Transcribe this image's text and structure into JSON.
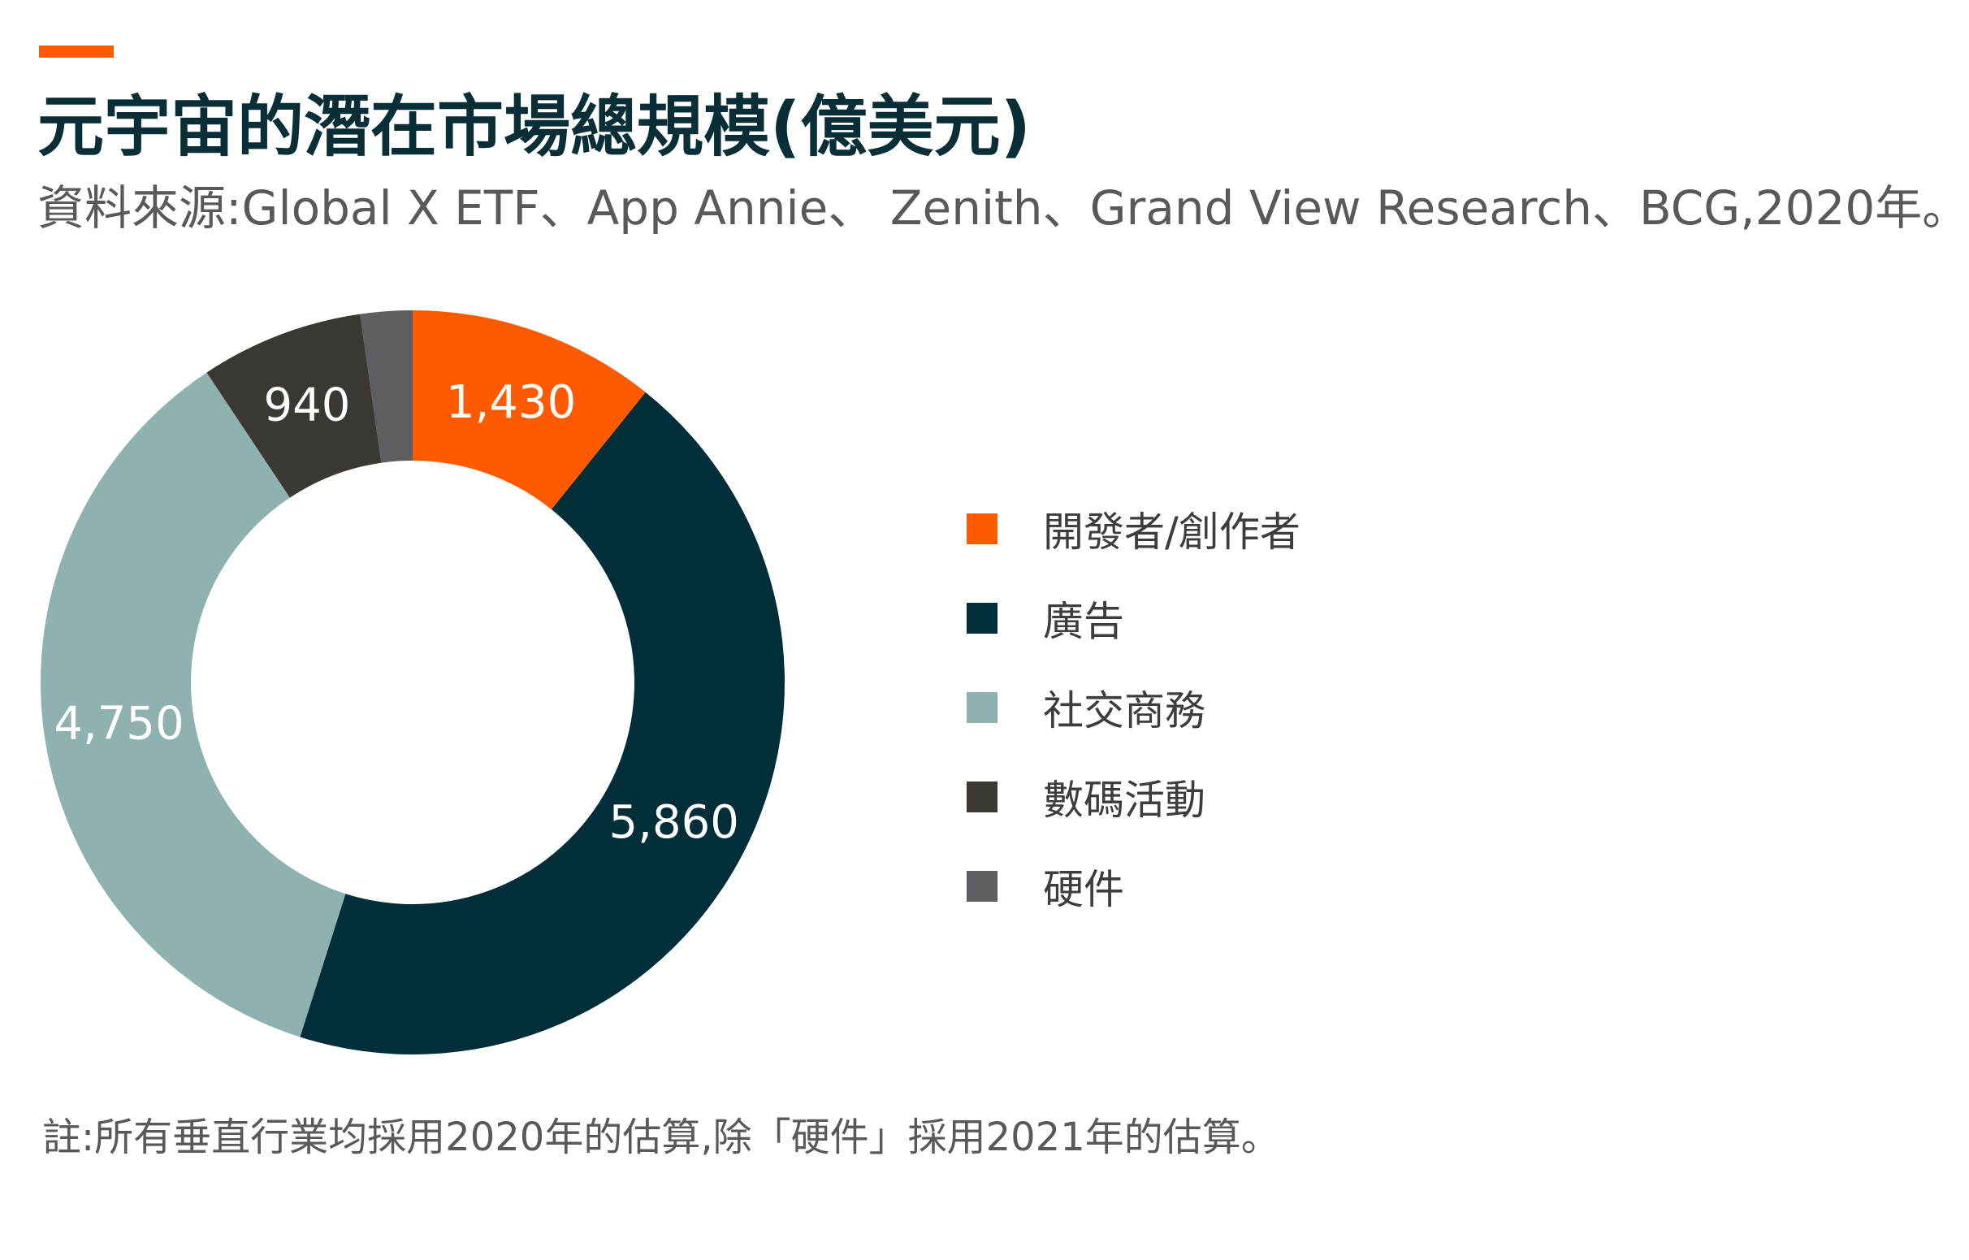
{
  "header": {
    "title": "元宇宙的潛在市場總規模(億美元)",
    "source": "資料來源:Global X ETF、App Annie、 Zenith、Grand View Research、BCG,2020年。"
  },
  "footer": {
    "note": "註:所有垂直行業均採用2020年的估算,除「硬件」採用2021年的估算。"
  },
  "colors": {
    "accent": "#ff5a00",
    "title": "#0a2e36"
  },
  "chart_data": {
    "type": "pie",
    "variant": "donut",
    "title": "元宇宙的潛在市場總規模(億美元)",
    "legend_position": "right",
    "categories": [
      "開發者/創作者",
      "廣告",
      "社交商務",
      "數碼活動",
      "硬件"
    ],
    "values": [
      1430,
      5860,
      4750,
      940,
      300
    ],
    "data_labels": [
      "1,430",
      "5,860",
      "4,750",
      "940",
      ""
    ],
    "colors": [
      "#ff5a00",
      "#012e38",
      "#8fb2b1",
      "#3b3833",
      "#5d5d62"
    ],
    "label_color": "#ffffff"
  }
}
